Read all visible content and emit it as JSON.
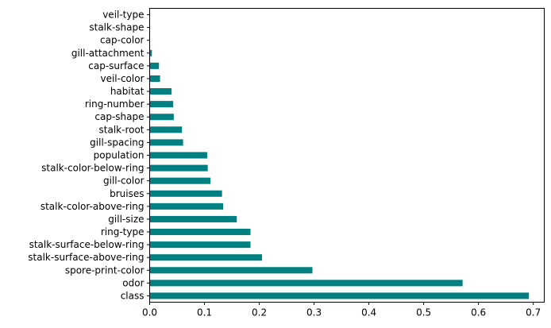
{
  "chart_data": {
    "type": "bar",
    "orientation": "horizontal",
    "title": "",
    "xlabel": "",
    "ylabel": "",
    "bar_color": "#008080",
    "grid": false,
    "legend": "none",
    "xlim": [
      0,
      0.72
    ],
    "xticks": [
      "0.0",
      "0.1",
      "0.2",
      "0.3",
      "0.4",
      "0.5",
      "0.6",
      "0.7"
    ],
    "xtick_values": [
      0.0,
      0.1,
      0.2,
      0.3,
      0.4,
      0.5,
      0.6,
      0.7
    ],
    "categories": [
      "class",
      "odor",
      "spore-print-color",
      "stalk-surface-above-ring",
      "stalk-surface-below-ring",
      "ring-type",
      "gill-size",
      "stalk-color-above-ring",
      "bruises",
      "gill-color",
      "stalk-color-below-ring",
      "population",
      "gill-spacing",
      "stalk-root",
      "cap-shape",
      "ring-number",
      "habitat",
      "veil-color",
      "cap-surface",
      "gill-attachment",
      "cap-color",
      "stalk-shape",
      "veil-type"
    ],
    "values": [
      0.692,
      0.571,
      0.297,
      0.205,
      0.184,
      0.184,
      0.159,
      0.134,
      0.132,
      0.111,
      0.106,
      0.105,
      0.061,
      0.059,
      0.044,
      0.043,
      0.04,
      0.019,
      0.017,
      0.004,
      0.0,
      0.0,
      0.0
    ]
  }
}
